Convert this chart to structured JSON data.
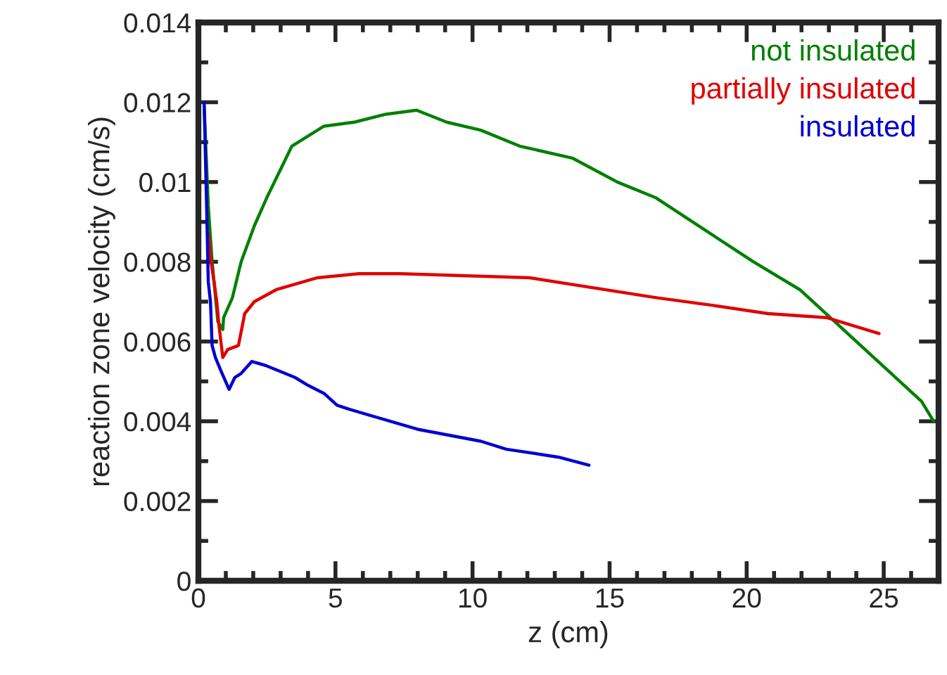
{
  "chart_data": {
    "type": "line",
    "xlabel": "z (cm)",
    "ylabel": "reaction zone velocity (cm/s)",
    "xlim": [
      0,
      27
    ],
    "ylim": [
      0,
      0.014
    ],
    "xticks": [
      0,
      {
        "value": 1,
        "label": null
      },
      {
        "value": 2,
        "label": null
      },
      {
        "value": 3,
        "label": null
      },
      {
        "value": 4,
        "label": null
      },
      5,
      {
        "value": 6,
        "label": null
      },
      {
        "value": 7,
        "label": null
      },
      {
        "value": 8,
        "label": null
      },
      {
        "value": 9,
        "label": null
      },
      10,
      {
        "value": 11,
        "label": null
      },
      {
        "value": 12,
        "label": null
      },
      {
        "value": 13,
        "label": null
      },
      {
        "value": 14,
        "label": null
      },
      15,
      {
        "value": 16,
        "label": null
      },
      {
        "value": 17,
        "label": null
      },
      {
        "value": 18,
        "label": null
      },
      {
        "value": 19,
        "label": null
      },
      20,
      {
        "value": 21,
        "label": null
      },
      {
        "value": 22,
        "label": null
      },
      {
        "value": 23,
        "label": null
      },
      {
        "value": 24,
        "label": null
      },
      25,
      {
        "value": 26,
        "label": null
      }
    ],
    "yticks": [
      0,
      {
        "value": 0.001,
        "label": null
      },
      0.002,
      {
        "value": 0.003,
        "label": null
      },
      0.004,
      {
        "value": 0.005,
        "label": null
      },
      0.006,
      {
        "value": 0.007,
        "label": null
      },
      0.008,
      {
        "value": 0.009,
        "label": null
      },
      {
        "value": 0.01,
        "label": "0.01"
      },
      {
        "value": 0.011,
        "label": null
      },
      0.012,
      {
        "value": 0.013,
        "label": null
      },
      0.014
    ],
    "grid": false,
    "legend": "top right",
    "marker": "none",
    "line_style": "solid",
    "series": [
      {
        "name": "not insulated",
        "color": "#008000",
        "x": [
          0.21,
          0.36,
          0.5,
          0.71,
          0.89,
          0.92,
          1.24,
          1.56,
          2.04,
          2.49,
          3.41,
          4.58,
          5.68,
          6.84,
          7.96,
          9.06,
          10.3,
          11.72,
          13.64,
          15.28,
          16.7,
          18.47,
          20.25,
          21.94,
          24.16,
          26.38,
          26.82
        ],
        "values": [
          0.0119,
          0.0094,
          0.008,
          0.0065,
          0.0063,
          0.0066,
          0.0071,
          0.008,
          0.0089,
          0.0096,
          0.0109,
          0.0114,
          0.0115,
          0.0117,
          0.0118,
          0.0115,
          0.0113,
          0.0109,
          0.0106,
          0.01,
          0.0096,
          0.0088,
          0.008,
          0.0073,
          0.0059,
          0.0045,
          0.004
        ]
      },
      {
        "name": "partially insulated",
        "color": "#e00000",
        "x": [
          0.36,
          0.44,
          0.57,
          0.67,
          0.75,
          0.89,
          1.07,
          1.46,
          1.69,
          2.04,
          2.84,
          4.35,
          5.86,
          7.37,
          12.08,
          16.7,
          18.83,
          20.78,
          22.91,
          24.83
        ],
        "values": [
          0.0087,
          0.0081,
          0.0075,
          0.007,
          0.0064,
          0.0056,
          0.0058,
          0.0059,
          0.0067,
          0.007,
          0.0073,
          0.0076,
          0.0077,
          0.0077,
          0.0076,
          0.0071,
          0.0069,
          0.0067,
          0.0066,
          0.0062
        ]
      },
      {
        "name": "insulated",
        "color": "#0000d0",
        "x": [
          0.21,
          0.3,
          0.36,
          0.44,
          0.5,
          0.62,
          0.8,
          1.12,
          1.33,
          1.56,
          1.95,
          2.45,
          3.52,
          4.0,
          4.58,
          5.06,
          5.51,
          7.99,
          10.3,
          11.23,
          13.14,
          14.25
        ],
        "values": [
          0.012,
          0.0094,
          0.0075,
          0.007,
          0.0059,
          0.0056,
          0.0053,
          0.0048,
          0.0051,
          0.0052,
          0.0055,
          0.0054,
          0.0051,
          0.0049,
          0.0047,
          0.0044,
          0.0043,
          0.0038,
          0.0035,
          0.0033,
          0.0031,
          0.0029
        ]
      }
    ]
  }
}
